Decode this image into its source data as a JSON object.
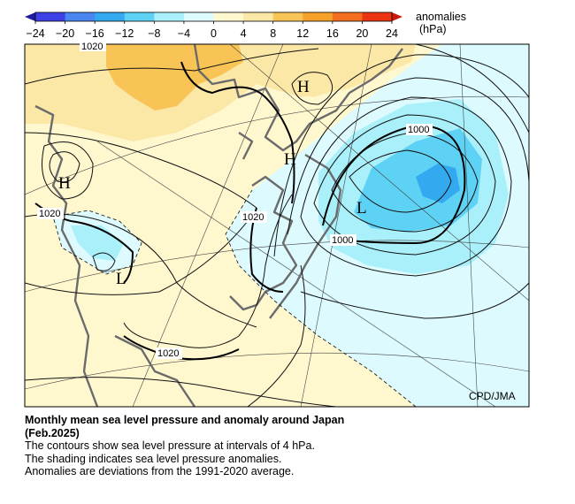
{
  "colorbar": {
    "title_line1": "anomalies",
    "title_line2": "(hPa)",
    "ticks": [
      "−24",
      "−20",
      "−16",
      "−12",
      "−8",
      "−4",
      "0",
      "4",
      "8",
      "12",
      "16",
      "20",
      "24"
    ],
    "colors": [
      "#3f3fe6",
      "#4a86f0",
      "#33aaf0",
      "#5ed2f5",
      "#aaf0fa",
      "#ddfbff",
      "#fff8cf",
      "#fbe7a6",
      "#f9c456",
      "#f5a12a",
      "#f36e1f",
      "#eb3512"
    ]
  },
  "map": {
    "credit": "CPD/JMA",
    "pressure_labels": [
      "1020",
      "1020",
      "1020",
      "1020",
      "1000",
      "1000"
    ],
    "centers": [
      "H",
      "H",
      "H",
      "L",
      "L"
    ],
    "colors": {
      "positive_weak": "#fff8cf",
      "positive_mid": "#fbe7a6",
      "positive_strong": "#f9c456",
      "negative_weak": "#ddfbff",
      "negative_mid": "#aaf0fa",
      "negative_strong": "#5ed2f5",
      "negative_core": "#33aaf0"
    }
  },
  "caption": {
    "title": "Monthly mean sea level pressure and anomaly around Japan",
    "date": "(Feb.2025)",
    "line1": "The contours show sea level pressure at intervals of 4 hPa.",
    "line2": "The shading indicates sea level pressure anomalies.",
    "line3": "Anomalies are deviations from the 1991-2020 average."
  }
}
